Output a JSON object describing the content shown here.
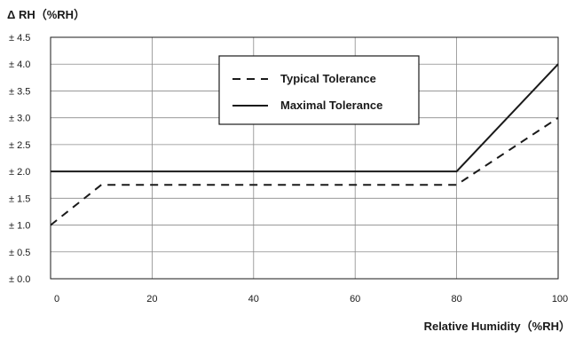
{
  "chart_data": {
    "type": "line",
    "title": "",
    "ylabel": "Δ RH（%RH）",
    "xlabel": "Relative Humidity（%RH）",
    "xlim": [
      0,
      100
    ],
    "ylim": [
      0,
      4.5
    ],
    "grid": true,
    "legend_position": "top-right",
    "x_ticks": [
      {
        "value": 0,
        "label": "0"
      },
      {
        "value": 20,
        "label": "20"
      },
      {
        "value": 40,
        "label": "40"
      },
      {
        "value": 60,
        "label": "60"
      },
      {
        "value": 80,
        "label": "80"
      },
      {
        "value": 100,
        "label": "100"
      }
    ],
    "y_ticks": [
      {
        "value": 0,
        "label": "± 0.0"
      },
      {
        "value": 0.5,
        "label": "± 0.5"
      },
      {
        "value": 1.0,
        "label": "± 1.0"
      },
      {
        "value": 1.5,
        "label": "± 1.5"
      },
      {
        "value": 2.0,
        "label": "± 2.0"
      },
      {
        "value": 2.5,
        "label": "± 2.5"
      },
      {
        "value": 3.0,
        "label": "± 3.0"
      },
      {
        "value": 3.5,
        "label": "± 3.5"
      },
      {
        "value": 4.0,
        "label": "± 4.0"
      },
      {
        "value": 4.5,
        "label": "± 4.5"
      }
    ],
    "series": [
      {
        "name": "Typical Tolerance",
        "style": "dashed",
        "color": "#1a1a1a",
        "points": [
          {
            "x": 0,
            "y": 1.0
          },
          {
            "x": 10,
            "y": 1.75
          },
          {
            "x": 80,
            "y": 1.75
          },
          {
            "x": 100,
            "y": 3.0
          }
        ]
      },
      {
        "name": "Maximal Tolerance",
        "style": "solid",
        "color": "#1a1a1a",
        "points": [
          {
            "x": 0,
            "y": 2.0
          },
          {
            "x": 80,
            "y": 2.0
          },
          {
            "x": 100,
            "y": 4.0
          }
        ]
      }
    ]
  }
}
